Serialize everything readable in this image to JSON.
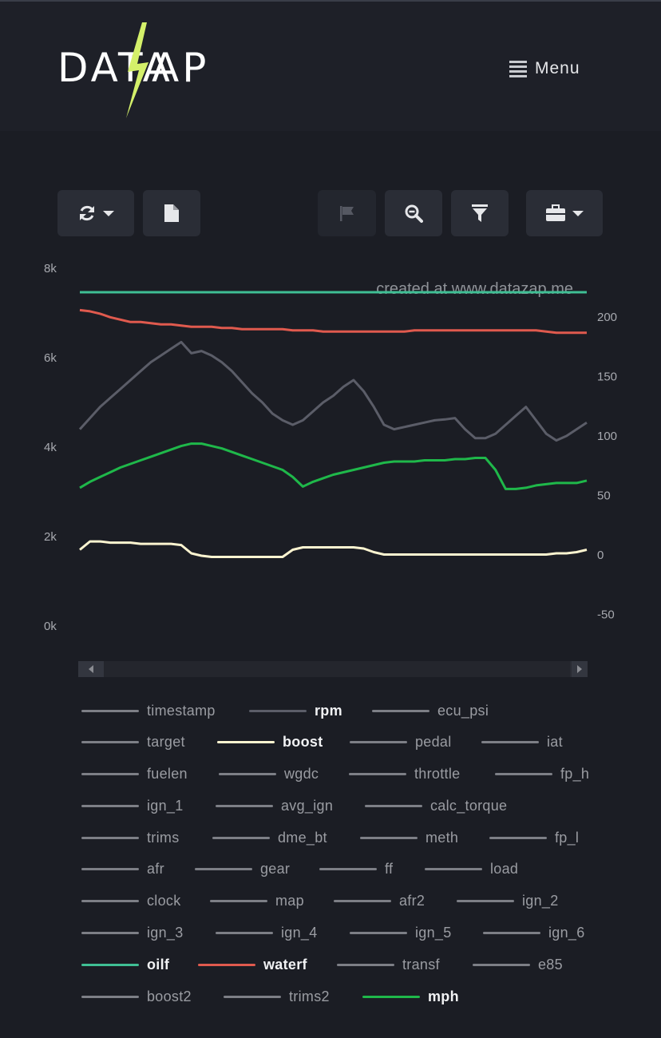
{
  "header": {
    "logo_left": "DATA",
    "logo_right": "AP",
    "menu_label": "Menu"
  },
  "toolbar": {
    "buttons": [
      {
        "name": "refresh",
        "icon": "sync-icon",
        "has_dropdown": true,
        "disabled": false
      },
      {
        "name": "file",
        "icon": "file-icon",
        "has_dropdown": false,
        "disabled": false
      },
      {
        "name": "flag",
        "icon": "flag-icon",
        "has_dropdown": false,
        "disabled": true
      },
      {
        "name": "zoom",
        "icon": "zoom-icon",
        "has_dropdown": false,
        "disabled": false
      },
      {
        "name": "filter",
        "icon": "filter-icon",
        "has_dropdown": false,
        "disabled": false
      },
      {
        "name": "tools",
        "icon": "briefcase-icon",
        "has_dropdown": true,
        "disabled": false
      }
    ]
  },
  "chart_data": {
    "type": "line",
    "watermark": "created at www.datazap.me",
    "left_axis": {
      "ticks": [
        "8k",
        "6k",
        "4k",
        "2k",
        "0k"
      ],
      "range": [
        0,
        8000
      ]
    },
    "right_axis": {
      "ticks": [
        "200",
        "150",
        "100",
        "50",
        "0",
        "-50"
      ],
      "range": [
        -75,
        225
      ]
    },
    "grid": false,
    "x": [
      0,
      2,
      4,
      6,
      8,
      10,
      12,
      14,
      16,
      18,
      20,
      22,
      24,
      26,
      28,
      30,
      32,
      34,
      36,
      38,
      40,
      42,
      44,
      46,
      48,
      50,
      52,
      54,
      56,
      58,
      60,
      62,
      64,
      66,
      68,
      70,
      72,
      74,
      76,
      78,
      80,
      82,
      84,
      86,
      88,
      90,
      92,
      94,
      96,
      98,
      100
    ],
    "series": [
      {
        "name": "oilf",
        "axis": "right",
        "color": "#3fbf94",
        "values": [
          221,
          221,
          221,
          221,
          221,
          221,
          221,
          221,
          221,
          221,
          221,
          221,
          221,
          221,
          221,
          221,
          221,
          221,
          221,
          221,
          221,
          221,
          221,
          221,
          221,
          221,
          221,
          221,
          221,
          221,
          221,
          221,
          221,
          221,
          221,
          221,
          221,
          221,
          221,
          221,
          221,
          221,
          221,
          221,
          221,
          221,
          221,
          221,
          221,
          221,
          221
        ]
      },
      {
        "name": "waterf",
        "axis": "right",
        "color": "#e05a4e",
        "values": [
          206,
          205,
          203,
          200,
          198,
          196,
          196,
          195,
          194,
          194,
          193,
          192,
          192,
          192,
          191,
          191,
          190,
          190,
          190,
          190,
          190,
          189,
          189,
          189,
          188,
          188,
          188,
          188,
          188,
          188,
          188,
          188,
          188,
          189,
          189,
          189,
          189,
          189,
          189,
          189,
          189,
          189,
          189,
          189,
          189,
          189,
          188,
          187,
          187,
          187,
          187
        ]
      },
      {
        "name": "rpm",
        "axis": "left",
        "color": "#5b5d68",
        "values": [
          4400,
          4650,
          4900,
          5100,
          5300,
          5500,
          5700,
          5900,
          6050,
          6200,
          6350,
          6100,
          6150,
          6050,
          5900,
          5700,
          5450,
          5200,
          5000,
          4750,
          4600,
          4500,
          4600,
          4800,
          5000,
          5150,
          5350,
          5500,
          5250,
          4900,
          4500,
          4400,
          4450,
          4500,
          4550,
          4600,
          4620,
          4650,
          4400,
          4200,
          4200,
          4300,
          4500,
          4700,
          4900,
          4600,
          4300,
          4150,
          4250,
          4400,
          4550
        ]
      },
      {
        "name": "mph",
        "axis": "right",
        "color": "#1fb84a",
        "values": [
          57,
          62,
          66,
          70,
          74,
          77,
          80,
          83,
          86,
          89,
          92,
          94,
          94,
          92,
          90,
          87,
          84,
          81,
          78,
          75,
          72,
          66,
          58,
          62,
          65,
          68,
          70,
          72,
          74,
          76,
          78,
          79,
          79,
          79,
          80,
          80,
          80,
          81,
          81,
          82,
          82,
          72,
          56,
          56,
          57,
          59,
          60,
          61,
          61,
          61,
          63
        ]
      },
      {
        "name": "boost",
        "axis": "right",
        "color": "#fcf4d0",
        "values": [
          5,
          12,
          12,
          11,
          11,
          11,
          10,
          10,
          10,
          10,
          9,
          2,
          0,
          -1,
          -1,
          -1,
          -1,
          -1,
          -1,
          -1,
          -1,
          5,
          7,
          7,
          7,
          7,
          7,
          7,
          6,
          3,
          1,
          1,
          1,
          1,
          1,
          1,
          1,
          1,
          1,
          1,
          1,
          1,
          1,
          1,
          1,
          1,
          1,
          2,
          2,
          3,
          5
        ]
      }
    ]
  },
  "legend": [
    [
      {
        "label": "timestamp",
        "color": "#7d7f86",
        "active": false
      },
      {
        "label": "rpm",
        "color": "#5b5d68",
        "active": true
      },
      {
        "label": "ecu_psi",
        "color": "#7d7f86",
        "active": false
      }
    ],
    [
      {
        "label": "target",
        "color": "#7d7f86",
        "active": false
      },
      {
        "label": "boost",
        "color": "#fcf4d0",
        "active": true
      },
      {
        "label": "pedal",
        "color": "#7d7f86",
        "active": false
      },
      {
        "label": "iat",
        "color": "#7d7f86",
        "active": false
      }
    ],
    [
      {
        "label": "fuelen",
        "color": "#7d7f86",
        "active": false
      },
      {
        "label": "wgdc",
        "color": "#7d7f86",
        "active": false
      },
      {
        "label": "throttle",
        "color": "#7d7f86",
        "active": false
      },
      {
        "label": "fp_h",
        "color": "#7d7f86",
        "active": false
      }
    ],
    [
      {
        "label": "ign_1",
        "color": "#7d7f86",
        "active": false
      },
      {
        "label": "avg_ign",
        "color": "#7d7f86",
        "active": false
      },
      {
        "label": "calc_torque",
        "color": "#7d7f86",
        "active": false
      }
    ],
    [
      {
        "label": "trims",
        "color": "#7d7f86",
        "active": false
      },
      {
        "label": "dme_bt",
        "color": "#7d7f86",
        "active": false
      },
      {
        "label": "meth",
        "color": "#7d7f86",
        "active": false
      },
      {
        "label": "fp_l",
        "color": "#7d7f86",
        "active": false
      }
    ],
    [
      {
        "label": "afr",
        "color": "#7d7f86",
        "active": false
      },
      {
        "label": "gear",
        "color": "#7d7f86",
        "active": false
      },
      {
        "label": "ff",
        "color": "#7d7f86",
        "active": false
      },
      {
        "label": "load",
        "color": "#7d7f86",
        "active": false
      }
    ],
    [
      {
        "label": "clock",
        "color": "#7d7f86",
        "active": false
      },
      {
        "label": "map",
        "color": "#7d7f86",
        "active": false
      },
      {
        "label": "afr2",
        "color": "#7d7f86",
        "active": false
      },
      {
        "label": "ign_2",
        "color": "#7d7f86",
        "active": false
      }
    ],
    [
      {
        "label": "ign_3",
        "color": "#7d7f86",
        "active": false
      },
      {
        "label": "ign_4",
        "color": "#7d7f86",
        "active": false
      },
      {
        "label": "ign_5",
        "color": "#7d7f86",
        "active": false
      },
      {
        "label": "ign_6",
        "color": "#7d7f86",
        "active": false
      }
    ],
    [
      {
        "label": "oilf",
        "color": "#3fbf94",
        "active": true
      },
      {
        "label": "waterf",
        "color": "#e05a4e",
        "active": true
      },
      {
        "label": "transf",
        "color": "#7d7f86",
        "active": false
      },
      {
        "label": "e85",
        "color": "#7d7f86",
        "active": false
      }
    ],
    [
      {
        "label": "boost2",
        "color": "#7d7f86",
        "active": false
      },
      {
        "label": "trims2",
        "color": "#7d7f86",
        "active": false
      },
      {
        "label": "mph",
        "color": "#1fb84a",
        "active": true
      }
    ]
  ]
}
